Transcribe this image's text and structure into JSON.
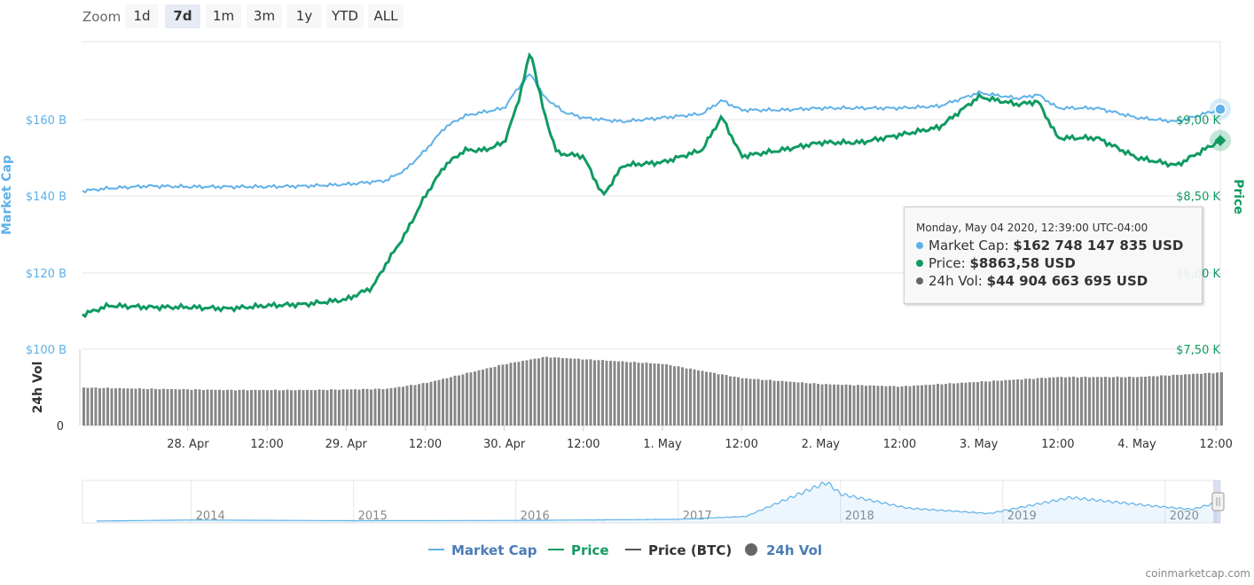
{
  "zoom": {
    "label": "Zoom",
    "buttons": [
      "1d",
      "7d",
      "1m",
      "3m",
      "1y",
      "YTD",
      "ALL"
    ],
    "active": "7d"
  },
  "colors": {
    "market_cap": "#5fb1e8",
    "price": "#109a61",
    "price_btc": "#555555",
    "volume": "#888888"
  },
  "axes": {
    "left_title": "Market Cap",
    "right_title": "Price",
    "volume_title": "24h Vol",
    "left_ticks": [
      "$160 B",
      "$140 B",
      "$120 B",
      "$100 B"
    ],
    "right_ticks": [
      "$9,00 K",
      "$8,50 K",
      "$8,00 K",
      "$7,50 K"
    ],
    "volume_ticks": [
      "0"
    ],
    "x_ticks": [
      "28. Apr",
      "12:00",
      "29. Apr",
      "12:00",
      "30. Apr",
      "12:00",
      "1. May",
      "12:00",
      "2. May",
      "12:00",
      "3. May",
      "12:00",
      "4. May",
      "12:00"
    ]
  },
  "tooltip": {
    "date": "Monday, May 04 2020, 12:39:00 UTC-04:00",
    "rows": [
      {
        "label": "Market Cap:",
        "value": "$162 748 147 835 USD",
        "color": "#5fb1e8"
      },
      {
        "label": "Price:",
        "value": "$8863,58 USD",
        "color": "#109a61"
      },
      {
        "label": "24h Vol:",
        "value": "$44 904 663 695 USD",
        "color": "#666666"
      }
    ]
  },
  "navigator": {
    "years": [
      "2014",
      "2015",
      "2016",
      "2017",
      "2018",
      "2019",
      "2020"
    ]
  },
  "legend": [
    {
      "label": "Market Cap",
      "color": "#5fb1e8",
      "symbol": "line"
    },
    {
      "label": "Price",
      "color": "#109a61",
      "symbol": "line"
    },
    {
      "label": "Price (BTC)",
      "color": "#555555",
      "symbol": "line"
    },
    {
      "label": "24h Vol",
      "color": "#666666",
      "symbol": "circle"
    }
  ],
  "credits": "coinmarketcap.com",
  "chart_data": {
    "type": "line",
    "x_range": [
      "2020-04-27 08:00",
      "2020-05-04 12:39"
    ],
    "y_left_range_billion_usd": [
      100,
      180
    ],
    "y_right_range_usd": [
      7500,
      9500
    ],
    "series": [
      {
        "name": "Market Cap",
        "unit": "billion USD",
        "points": [
          [
            "04-27 08:00",
            141.5
          ],
          [
            "04-27 12:00",
            142.2
          ],
          [
            "04-27 18:00",
            142.8
          ],
          [
            "04-28 00:00",
            142.6
          ],
          [
            "04-28 06:00",
            142.6
          ],
          [
            "04-28 12:00",
            142.6
          ],
          [
            "04-28 18:00",
            142.8
          ],
          [
            "04-29 00:00",
            143.2
          ],
          [
            "04-29 06:00",
            144.2
          ],
          [
            "04-29 09:00",
            147.0
          ],
          [
            "04-29 12:00",
            152.0
          ],
          [
            "04-29 15:00",
            158.0
          ],
          [
            "04-29 18:00",
            161.0
          ],
          [
            "04-29 21:00",
            162.0
          ],
          [
            "04-30 00:00",
            163.0
          ],
          [
            "04-30 02:00",
            168.0
          ],
          [
            "04-30 04:00",
            172.0
          ],
          [
            "04-30 06:00",
            166.0
          ],
          [
            "04-30 09:00",
            162.0
          ],
          [
            "04-30 12:00",
            160.5
          ],
          [
            "04-30 18:00",
            159.5
          ],
          [
            "05-01 00:00",
            160.5
          ],
          [
            "05-01 06:00",
            161.5
          ],
          [
            "05-01 09:00",
            165.0
          ],
          [
            "05-01 12:00",
            162.5
          ],
          [
            "05-01 18:00",
            162.5
          ],
          [
            "05-02 00:00",
            163.0
          ],
          [
            "05-02 06:00",
            163.0
          ],
          [
            "05-02 12:00",
            163.0
          ],
          [
            "05-02 18:00",
            163.5
          ],
          [
            "05-03 00:00",
            167.0
          ],
          [
            "05-03 06:00",
            165.5
          ],
          [
            "05-03 09:00",
            166.5
          ],
          [
            "05-03 12:00",
            163.0
          ],
          [
            "05-03 18:00",
            163.0
          ],
          [
            "05-04 00:00",
            160.5
          ],
          [
            "05-04 06:00",
            159.5
          ],
          [
            "05-04 12:39",
            162.7
          ]
        ]
      },
      {
        "name": "Price",
        "unit": "USD",
        "points": [
          [
            "04-27 08:00",
            7720
          ],
          [
            "04-27 12:00",
            7780
          ],
          [
            "04-27 18:00",
            7770
          ],
          [
            "04-28 00:00",
            7770
          ],
          [
            "04-28 06:00",
            7760
          ],
          [
            "04-28 12:00",
            7780
          ],
          [
            "04-28 18:00",
            7790
          ],
          [
            "04-29 00:00",
            7820
          ],
          [
            "04-29 04:00",
            7900
          ],
          [
            "04-29 06:00",
            8050
          ],
          [
            "04-29 09:00",
            8250
          ],
          [
            "04-29 12:00",
            8500
          ],
          [
            "04-29 15:00",
            8700
          ],
          [
            "04-29 18:00",
            8800
          ],
          [
            "04-29 21:00",
            8800
          ],
          [
            "04-30 00:00",
            8850
          ],
          [
            "04-30 02:00",
            9100
          ],
          [
            "04-30 04:00",
            9450
          ],
          [
            "04-30 06:00",
            9050
          ],
          [
            "04-30 08:00",
            8780
          ],
          [
            "04-30 12:00",
            8760
          ],
          [
            "04-30 15:00",
            8500
          ],
          [
            "04-30 18:00",
            8700
          ],
          [
            "05-01 00:00",
            8720
          ],
          [
            "05-01 06:00",
            8800
          ],
          [
            "05-01 09:00",
            9020
          ],
          [
            "05-01 12:00",
            8760
          ],
          [
            "05-01 18:00",
            8800
          ],
          [
            "05-02 00:00",
            8850
          ],
          [
            "05-02 06:00",
            8850
          ],
          [
            "05-02 12:00",
            8900
          ],
          [
            "05-02 18:00",
            8950
          ],
          [
            "05-03 00:00",
            9150
          ],
          [
            "05-03 06:00",
            9100
          ],
          [
            "05-03 09:00",
            9120
          ],
          [
            "05-03 12:00",
            8880
          ],
          [
            "05-03 18:00",
            8880
          ],
          [
            "05-04 00:00",
            8750
          ],
          [
            "05-04 06:00",
            8700
          ],
          [
            "05-04 12:39",
            8863.58
          ]
        ]
      },
      {
        "name": "24h Vol",
        "unit": "billion USD",
        "points": [
          [
            "04-27 08:00",
            32
          ],
          [
            "04-27 18:00",
            31
          ],
          [
            "04-28 06:00",
            30
          ],
          [
            "04-28 18:00",
            30
          ],
          [
            "04-29 06:00",
            31
          ],
          [
            "04-29 12:00",
            36
          ],
          [
            "04-29 18:00",
            44
          ],
          [
            "04-30 00:00",
            52
          ],
          [
            "04-30 06:00",
            58
          ],
          [
            "04-30 12:00",
            56
          ],
          [
            "05-01 00:00",
            52
          ],
          [
            "05-01 12:00",
            40
          ],
          [
            "05-02 00:00",
            35
          ],
          [
            "05-02 12:00",
            33
          ],
          [
            "05-03 00:00",
            37
          ],
          [
            "05-03 12:00",
            41
          ],
          [
            "05-04 00:00",
            41
          ],
          [
            "05-04 12:39",
            44.9
          ]
        ]
      }
    ],
    "navigator_series": {
      "name": "Market Cap",
      "unit": "billion USD",
      "points": [
        [
          "2013-06",
          1
        ],
        [
          "2014-01",
          10
        ],
        [
          "2015-01",
          4
        ],
        [
          "2016-01",
          6
        ],
        [
          "2017-01",
          16
        ],
        [
          "2017-06",
          40
        ],
        [
          "2017-12",
          330
        ],
        [
          "2018-01",
          230
        ],
        [
          "2018-06",
          110
        ],
        [
          "2018-12",
          65
        ],
        [
          "2019-06",
          200
        ],
        [
          "2019-12",
          130
        ],
        [
          "2020-03",
          100
        ],
        [
          "2020-05",
          163
        ]
      ]
    }
  }
}
